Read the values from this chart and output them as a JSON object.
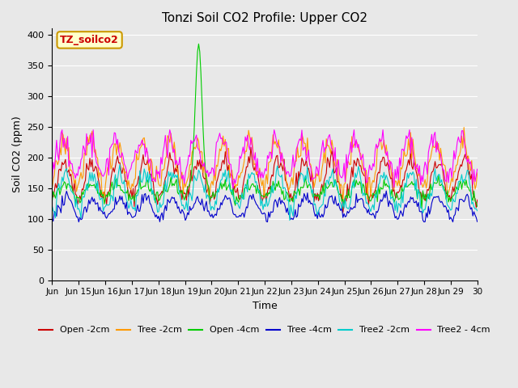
{
  "title": "Tonzi Soil CO2 Profile: Upper CO2",
  "xlabel": "Time",
  "ylabel": "Soil CO2 (ppm)",
  "ylim": [
    0,
    410
  ],
  "yticks": [
    0,
    50,
    100,
    150,
    200,
    250,
    300,
    350,
    400
  ],
  "n_days": 16,
  "x_tick_labels": [
    "Jun 15",
    "Jun 16",
    "Jun 17",
    "Jun 18",
    "Jun 19",
    "Jun 20",
    "Jun 21",
    "Jun 22",
    "Jun 23",
    "Jun 24",
    "Jun 25",
    "Jun 26",
    "Jun 27",
    "Jun 28",
    "Jun 29",
    "Jun 30"
  ],
  "x_tick_label_first": "Jun",
  "background_color": "#e8e8e8",
  "series": [
    {
      "label": "Open -2cm",
      "color": "#cc0000"
    },
    {
      "label": "Tree -2cm",
      "color": "#ff9900"
    },
    {
      "label": "Open -4cm",
      "color": "#00cc00"
    },
    {
      "label": "Tree -4cm",
      "color": "#0000cc"
    },
    {
      "label": "Tree2 -2cm",
      "color": "#00cccc"
    },
    {
      "label": "Tree2 - 4cm",
      "color": "#ff00ff"
    }
  ],
  "annotation_label": "TZ_soilco2",
  "annotation_color": "#cc0000",
  "annotation_bg": "#ffffcc",
  "annotation_border": "#cc9900"
}
